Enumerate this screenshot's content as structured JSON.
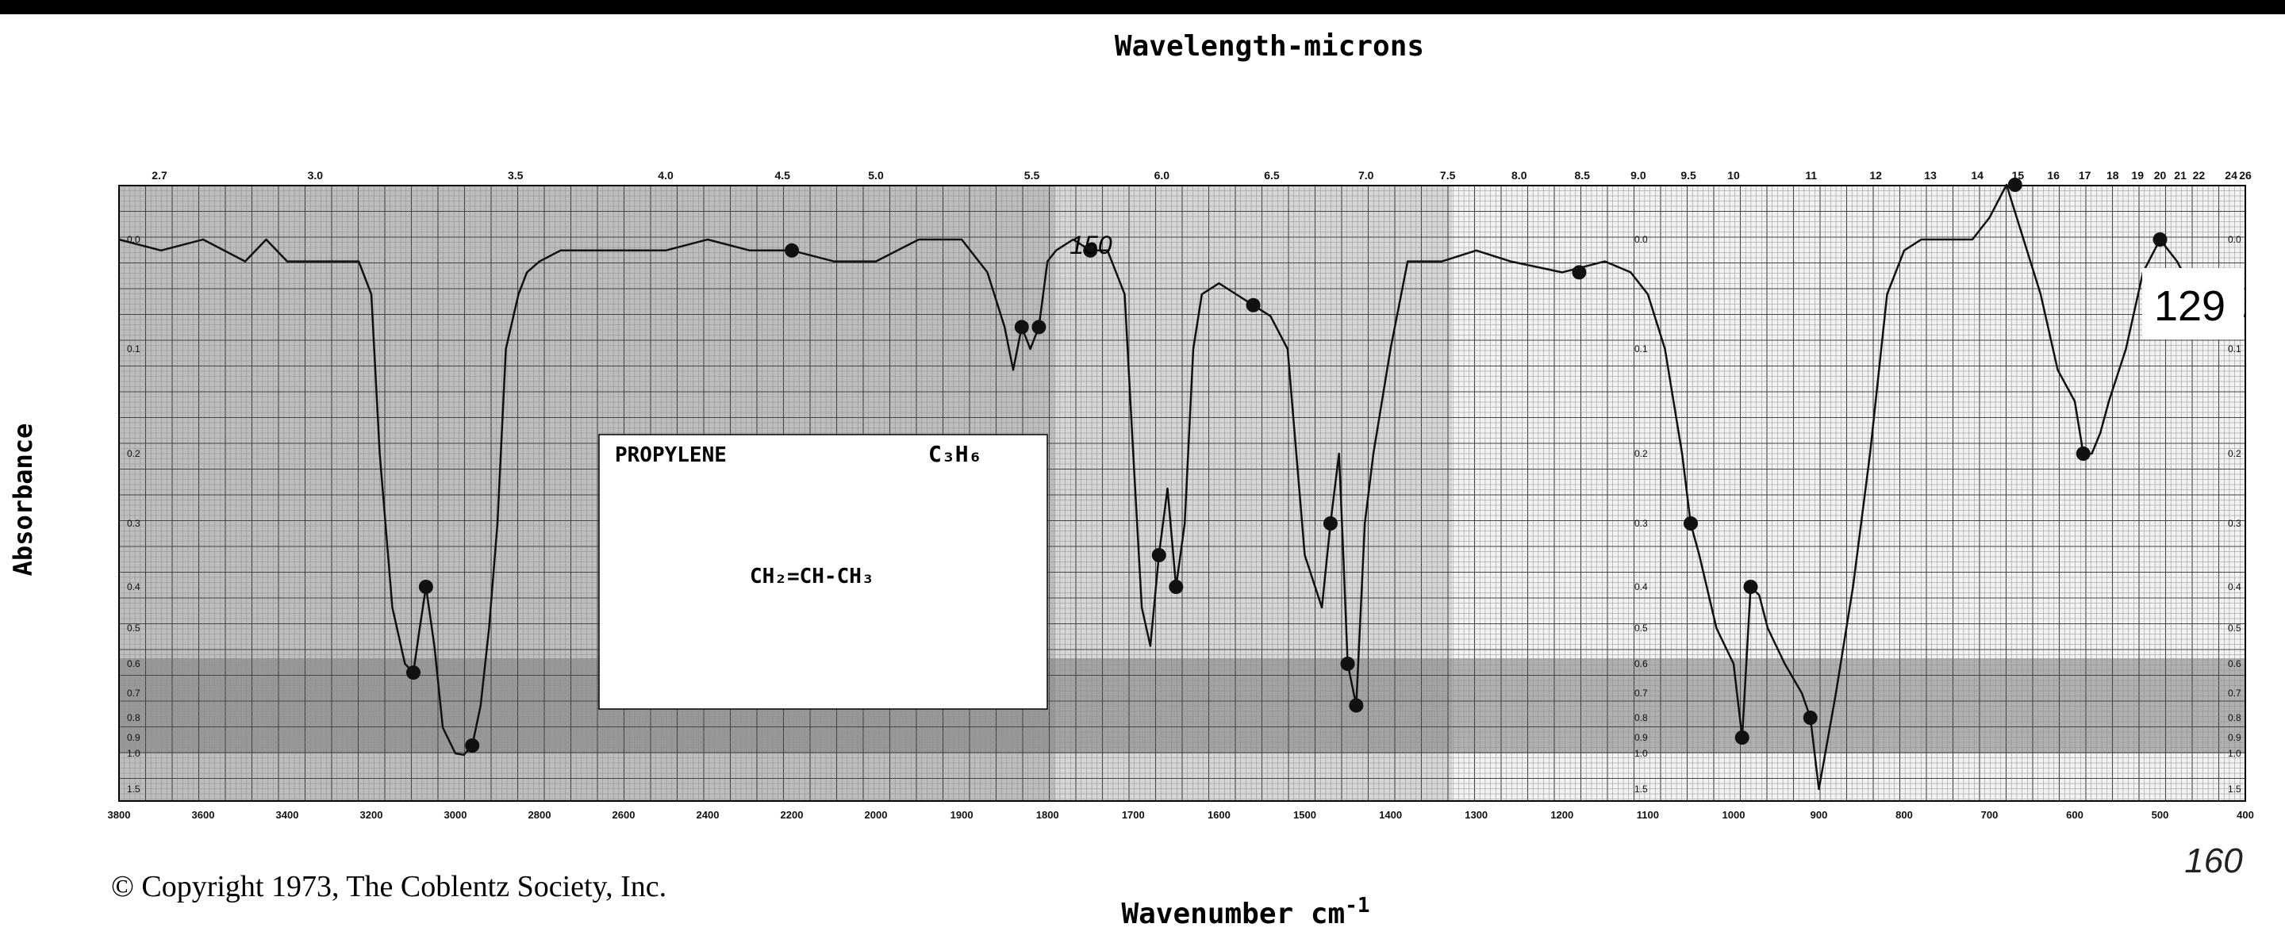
{
  "chart_data": {
    "type": "line",
    "title": "",
    "x_top_label": "Wavelength-microns",
    "xlabel": "Wavenumber cm",
    "xlabel_superscript": "-1",
    "ylabel": "Absorbance",
    "x_direction": "decreasing",
    "xlim": [
      3800,
      400
    ],
    "ylim": [
      0.0,
      1.5
    ],
    "grid": true,
    "wavenumber_ticks": [
      "3800",
      "3600",
      "3400",
      "3200",
      "3000",
      "2800",
      "2600",
      "2400",
      "2200",
      "2000",
      "1900",
      "1800",
      "1700",
      "1600",
      "1500",
      "1400",
      "1300",
      "1200",
      "1100",
      "1000",
      "900",
      "800",
      "700",
      "600",
      "500",
      "400"
    ],
    "wavelength_ticks": [
      "2.7",
      "3.0",
      "3.5",
      "4.0",
      "4.5",
      "5.0",
      "5.5",
      "6.0",
      "6.5",
      "7.0",
      "7.5",
      "8.0",
      "8.5",
      "9.0",
      "9.5",
      "10",
      "11",
      "12",
      "13",
      "14",
      "15",
      "16",
      "17",
      "18",
      "19",
      "20",
      "21",
      "22",
      "24",
      "26"
    ],
    "absorbance_ticks": [
      "0.0",
      "0.1",
      "0.2",
      "0.3",
      "0.4",
      "0.5",
      "0.6",
      "0.7",
      "0.8",
      "0.9",
      "1.0",
      "1.5"
    ],
    "absorbance_values": [
      0.0,
      0.1,
      0.2,
      0.3,
      0.4,
      0.5,
      0.6,
      0.7,
      0.8,
      0.9,
      1.0,
      1.5
    ],
    "series": [
      {
        "x": [
          3800,
          3700,
          3600,
          3500,
          3450,
          3400,
          3300,
          3230,
          3200,
          3180,
          3150,
          3120,
          3100,
          3085,
          3070,
          3050,
          3030,
          3000,
          2980,
          2960,
          2940,
          2920,
          2900,
          2880,
          2850,
          2830,
          2800,
          2750,
          2700,
          2600,
          2500,
          2400,
          2300,
          2200,
          2100,
          2000,
          1950,
          1900,
          1870,
          1850,
          1840,
          1830,
          1820,
          1810,
          1800,
          1790,
          1770,
          1750,
          1730,
          1710,
          1700,
          1690,
          1680,
          1670,
          1660,
          1650,
          1640,
          1630,
          1620,
          1600,
          1580,
          1560,
          1540,
          1520,
          1500,
          1480,
          1470,
          1460,
          1455,
          1450,
          1440,
          1430,
          1420,
          1400,
          1380,
          1360,
          1340,
          1300,
          1260,
          1200,
          1150,
          1120,
          1100,
          1080,
          1060,
          1050,
          1040,
          1020,
          1000,
          990,
          980,
          970,
          960,
          940,
          920,
          910,
          900,
          880,
          860,
          840,
          820,
          800,
          780,
          760,
          740,
          720,
          700,
          680,
          660,
          640,
          620,
          600,
          590,
          580,
          570,
          560,
          540,
          520,
          500,
          480,
          460,
          440,
          420,
          400
        ],
        "y": [
          0.0,
          0.01,
          0.0,
          0.02,
          0.0,
          0.02,
          0.02,
          0.02,
          0.05,
          0.2,
          0.45,
          0.6,
          0.63,
          0.5,
          0.4,
          0.55,
          0.85,
          1.0,
          1.02,
          0.95,
          0.75,
          0.5,
          0.3,
          0.1,
          0.05,
          0.03,
          0.02,
          0.01,
          0.01,
          0.01,
          0.01,
          0.0,
          0.01,
          0.01,
          0.02,
          0.02,
          0.0,
          0.0,
          0.03,
          0.08,
          0.12,
          0.08,
          0.1,
          0.08,
          0.02,
          0.01,
          0.0,
          0.01,
          0.01,
          0.05,
          0.2,
          0.45,
          0.55,
          0.35,
          0.25,
          0.4,
          0.3,
          0.1,
          0.05,
          0.04,
          0.05,
          0.06,
          0.07,
          0.1,
          0.35,
          0.45,
          0.3,
          0.2,
          0.35,
          0.6,
          0.75,
          0.3,
          0.2,
          0.1,
          0.02,
          0.02,
          0.02,
          0.01,
          0.02,
          0.03,
          0.02,
          0.03,
          0.05,
          0.1,
          0.2,
          0.3,
          0.35,
          0.5,
          0.6,
          0.9,
          0.4,
          0.42,
          0.5,
          0.6,
          0.7,
          0.8,
          1.5,
          0.7,
          0.4,
          0.2,
          0.05,
          0.01,
          0.0,
          0.0,
          0.0,
          0.0,
          -0.02,
          -0.05,
          0.0,
          0.05,
          0.12,
          0.15,
          0.2,
          0.2,
          0.18,
          0.15,
          0.1,
          0.03,
          0.0,
          0.02,
          0.05,
          0.06,
          0.07,
          0.07
        ]
      }
    ]
  },
  "spectrum_box": {
    "compound_name": "PROPYLENE",
    "formula": "C₃H₆",
    "structure": "CH₂=CH-CH₃"
  },
  "handwritten": {
    "spectrum_number": "129",
    "peak_note": "150",
    "margin_note": "160"
  },
  "copyright": "© Copyright 1973, The Coblentz Society, Inc.",
  "colors": {
    "trace": "#1a1a1a",
    "grid_dark": "#3a3a3a",
    "grid_light": "#8a8a8a",
    "band": "#555555"
  }
}
